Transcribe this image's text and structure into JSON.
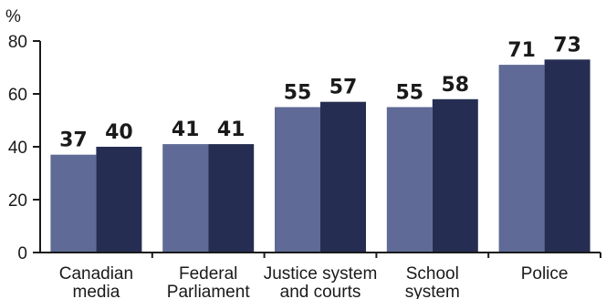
{
  "chart_data": {
    "type": "bar",
    "ylabel": "%",
    "ylim": [
      0,
      80
    ],
    "yticks": [
      0,
      20,
      40,
      60,
      80
    ],
    "grid": false,
    "categories": [
      [
        "Canadian",
        "media"
      ],
      [
        "Federal",
        "Parliament"
      ],
      [
        "Justice system",
        "and courts"
      ],
      [
        "School",
        "system"
      ],
      [
        "Police"
      ]
    ],
    "series": [
      {
        "values": [
          37,
          41,
          55,
          55,
          71
        ],
        "color": "#5f6a96"
      },
      {
        "values": [
          40,
          41,
          57,
          58,
          73
        ],
        "color": "#252e52"
      }
    ],
    "data_labels": true
  }
}
